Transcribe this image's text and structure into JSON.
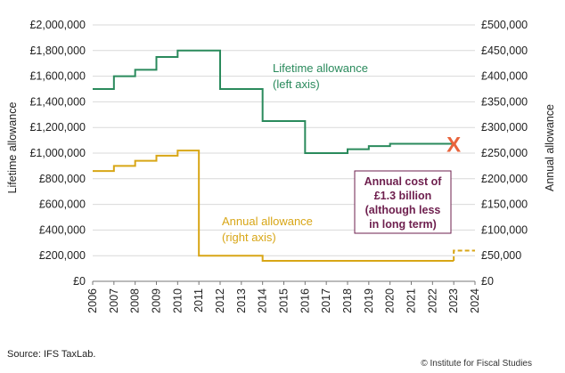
{
  "chart_data": {
    "type": "line",
    "title": "",
    "xlabel": "",
    "ylabel_left": "Lifetime allowance",
    "ylabel_right": "Annual allowance",
    "x_ticks": [
      "2006",
      "2007",
      "2008",
      "2009",
      "2010",
      "2011",
      "2012",
      "2013",
      "2014",
      "2015",
      "2016",
      "2017",
      "2018",
      "2019",
      "2020",
      "2021",
      "2022",
      "2023",
      "2024"
    ],
    "xlim": [
      2006,
      2024
    ],
    "ylim_left": [
      0,
      2000000
    ],
    "ylim_right": [
      0,
      500000
    ],
    "left_tick_labels": [
      "£0",
      "£200,000",
      "£400,000",
      "£600,000",
      "£800,000",
      "£1,000,000",
      "£1,200,000",
      "£1,400,000",
      "£1,600,000",
      "£1,800,000",
      "£2,000,000"
    ],
    "right_tick_labels": [
      "£0",
      "£50,000",
      "£100,000",
      "£150,000",
      "£200,000",
      "£250,000",
      "£300,000",
      "£350,000",
      "£400,000",
      "£450,000",
      "£500,000"
    ],
    "series": [
      {
        "name": "Lifetime allowance (left axis)",
        "axis": "left",
        "color": "#2a8a5c",
        "step": true,
        "points": [
          [
            2006,
            1500000
          ],
          [
            2007,
            1600000
          ],
          [
            2008,
            1650000
          ],
          [
            2009,
            1750000
          ],
          [
            2010,
            1800000
          ],
          [
            2012,
            1500000
          ],
          [
            2014,
            1250000
          ],
          [
            2016,
            1000000
          ],
          [
            2018,
            1030000
          ],
          [
            2019,
            1055000
          ],
          [
            2020,
            1073100
          ],
          [
            2023,
            1073100
          ]
        ]
      },
      {
        "name": "Annual allowance (right axis)",
        "axis": "right",
        "color": "#d8a616",
        "step": true,
        "points": [
          [
            2006,
            215000
          ],
          [
            2007,
            225000
          ],
          [
            2008,
            235000
          ],
          [
            2009,
            245000
          ],
          [
            2010,
            255000
          ],
          [
            2011,
            50000
          ],
          [
            2014,
            40000
          ],
          [
            2023,
            40000
          ]
        ],
        "projection": {
          "from": 2023,
          "to": 2024,
          "value": 60000,
          "dashed": true
        }
      }
    ],
    "annotations": {
      "lifetime_label": [
        "Lifetime allowance",
        "(left axis)"
      ],
      "annual_label": [
        "Annual allowance",
        "(right axis)"
      ],
      "abolition_marker": {
        "text": "X",
        "x": 2023,
        "value": 1073100,
        "axis": "left",
        "color": "#e8643c"
      },
      "cost_box": [
        "Annual cost of",
        "£1.3 billion",
        "(although less",
        "in long term)"
      ]
    }
  },
  "footer": {
    "source": "Source: IFS TaxLab.",
    "credit": "© Institute for Fiscal Studies"
  }
}
